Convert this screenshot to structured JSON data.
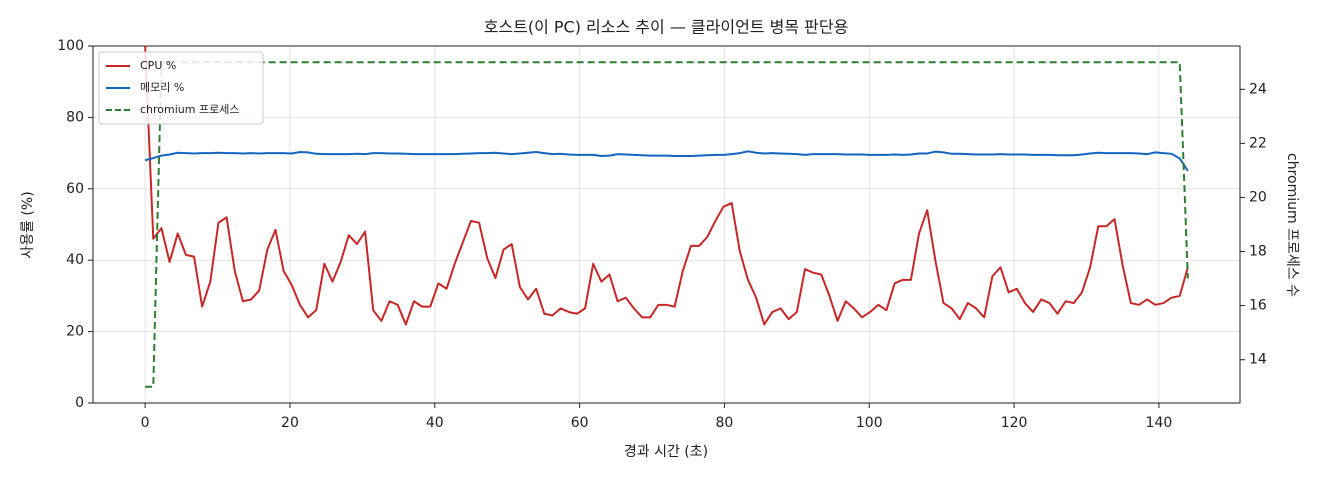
{
  "chart_data": {
    "type": "line",
    "title": "호스트(이 PC) 리소스 추이 — 클라이언트 병목 판단용",
    "x_label": "경과 시간 (초)",
    "y_label": "사용률 (%)",
    "y2_label": "chromium 프로세스 수",
    "xlim": [
      -7.2,
      151.2
    ],
    "xticks": [
      0,
      20,
      40,
      60,
      80,
      100,
      120,
      140
    ],
    "ylim": [
      0,
      100
    ],
    "yticks": [
      0,
      20,
      40,
      60,
      80,
      100
    ],
    "y2lim": [
      12.4,
      25.6
    ],
    "y2ticks": [
      14,
      16,
      18,
      20,
      22,
      24
    ],
    "grid": true,
    "legend": "upper left",
    "x": [
      0,
      1.125,
      2.25,
      3.375,
      4.5,
      5.625,
      6.75,
      7.875,
      9,
      10.125,
      11.25,
      12.375,
      13.5,
      14.625,
      15.75,
      16.875,
      18,
      19.125,
      20.25,
      21.375,
      22.5,
      23.625,
      24.75,
      25.875,
      27,
      28.125,
      29.25,
      30.375,
      31.5,
      32.625,
      33.75,
      34.875,
      36,
      37.125,
      38.25,
      39.375,
      40.5,
      41.625,
      42.75,
      43.875,
      45,
      46.125,
      47.25,
      48.375,
      49.5,
      50.625,
      51.75,
      52.875,
      54,
      55.125,
      56.25,
      57.375,
      58.5,
      59.625,
      60.75,
      61.875,
      63,
      64.125,
      65.25,
      66.375,
      67.5,
      68.625,
      69.75,
      70.875,
      72,
      73.125,
      74.25,
      75.375,
      76.5,
      77.625,
      78.75,
      79.875,
      81,
      82.125,
      83.25,
      84.375,
      85.5,
      86.625,
      87.75,
      88.875,
      90,
      91.125,
      92.25,
      93.375,
      94.5,
      95.625,
      96.75,
      97.875,
      99,
      100.125,
      101.25,
      102.375,
      103.5,
      104.625,
      105.75,
      106.875,
      108,
      109.125,
      110.25,
      111.375,
      112.5,
      113.625,
      114.75,
      115.875,
      117,
      118.125,
      119.25,
      120.375,
      121.5,
      122.625,
      123.75,
      124.875,
      126,
      127.125,
      128.25,
      129.375,
      130.5,
      131.625,
      132.75,
      133.875,
      135,
      136.125,
      137.25,
      138.375,
      139.5,
      140.625,
      141.75,
      142.875,
      144
    ],
    "series": [
      {
        "name": "CPU %",
        "color": "#c62828",
        "linestyle": "solid",
        "values": [
          100,
          46,
          49,
          39.5,
          47.5,
          41.5,
          41,
          27,
          34,
          50.5,
          52,
          37,
          28.5,
          29,
          31.5,
          43,
          48.5,
          37,
          33,
          27.5,
          24,
          26,
          39,
          34,
          39.5,
          47,
          44.5,
          48,
          26,
          23,
          28.5,
          27.5,
          22,
          28.5,
          27,
          27,
          33.5,
          32,
          39,
          45,
          51,
          50.5,
          40.5,
          35,
          43,
          44.5,
          32.5,
          29,
          32,
          25,
          24.5,
          26.5,
          25.5,
          25,
          26.5,
          39,
          34,
          36,
          28.5,
          29.5,
          26.5,
          24,
          24,
          27.5,
          27.5,
          27,
          37,
          44,
          44,
          46.5,
          51,
          55,
          56,
          42.5,
          34.5,
          29.5,
          22,
          25.5,
          26.5,
          23.5,
          25.5,
          37.5,
          36.5,
          36,
          30,
          23,
          28.5,
          26.5,
          24,
          25.5,
          27.5,
          26,
          33.5,
          34.5,
          34.5,
          47.5,
          54,
          40,
          28,
          26.5,
          23.5,
          28,
          26.5,
          24,
          35.5,
          38,
          31,
          32,
          28,
          25.5,
          29,
          28,
          25,
          28.5,
          28,
          31,
          38,
          49.5,
          49.5,
          51.5,
          38.5,
          28,
          27.5,
          29,
          27.5,
          28,
          29.5,
          30,
          38
        ]
      },
      {
        "name": "메모리 %",
        "color": "#1565c0",
        "linestyle": "solid",
        "values": [
          68,
          68.6,
          69.3,
          69.6,
          70.1,
          70,
          69.9,
          70,
          70,
          70.1,
          70,
          70,
          69.9,
          70,
          69.9,
          70,
          70,
          70,
          69.9,
          70.3,
          70.2,
          69.8,
          69.7,
          69.7,
          69.7,
          69.7,
          69.8,
          69.7,
          70,
          70,
          69.9,
          69.9,
          69.8,
          69.7,
          69.7,
          69.7,
          69.7,
          69.7,
          69.7,
          69.8,
          69.9,
          70,
          70,
          70.1,
          69.9,
          69.7,
          69.9,
          70.1,
          70.3,
          70,
          69.7,
          69.8,
          69.6,
          69.5,
          69.5,
          69.5,
          69.2,
          69.3,
          69.7,
          69.6,
          69.5,
          69.4,
          69.3,
          69.3,
          69.3,
          69.2,
          69.2,
          69.2,
          69.3,
          69.4,
          69.5,
          69.5,
          69.7,
          70,
          70.5,
          70.1,
          69.9,
          70,
          69.9,
          69.8,
          69.7,
          69.5,
          69.7,
          69.7,
          69.7,
          69.7,
          69.6,
          69.6,
          69.6,
          69.5,
          69.5,
          69.5,
          69.6,
          69.5,
          69.6,
          69.9,
          69.9,
          70.4,
          70.2,
          69.8,
          69.8,
          69.7,
          69.6,
          69.6,
          69.6,
          69.7,
          69.6,
          69.6,
          69.6,
          69.5,
          69.5,
          69.5,
          69.4,
          69.4,
          69.4,
          69.6,
          69.9,
          70.1,
          70,
          70,
          70,
          70,
          69.9,
          69.7,
          70.2,
          70,
          69.8,
          68.5,
          65
        ]
      },
      {
        "name": "chromium 프로세스",
        "color": "#2e7d32",
        "linestyle": "dashed",
        "axis": "y2",
        "values": [
          13,
          13,
          25,
          25,
          25,
          25,
          25,
          25,
          25,
          25,
          25,
          25,
          25,
          25,
          25,
          25,
          25,
          25,
          25,
          25,
          25,
          25,
          25,
          25,
          25,
          25,
          25,
          25,
          25,
          25,
          25,
          25,
          25,
          25,
          25,
          25,
          25,
          25,
          25,
          25,
          25,
          25,
          25,
          25,
          25,
          25,
          25,
          25,
          25,
          25,
          25,
          25,
          25,
          25,
          25,
          25,
          25,
          25,
          25,
          25,
          25,
          25,
          25,
          25,
          25,
          25,
          25,
          25,
          25,
          25,
          25,
          25,
          25,
          25,
          25,
          25,
          25,
          25,
          25,
          25,
          25,
          25,
          25,
          25,
          25,
          25,
          25,
          25,
          25,
          25,
          25,
          25,
          25,
          25,
          25,
          25,
          25,
          25,
          25,
          25,
          25,
          25,
          25,
          25,
          25,
          25,
          25,
          25,
          25,
          25,
          25,
          25,
          25,
          25,
          25,
          25,
          25,
          25,
          25,
          25,
          25,
          25,
          25,
          25,
          25,
          25,
          25,
          25,
          17
        ]
      }
    ]
  }
}
